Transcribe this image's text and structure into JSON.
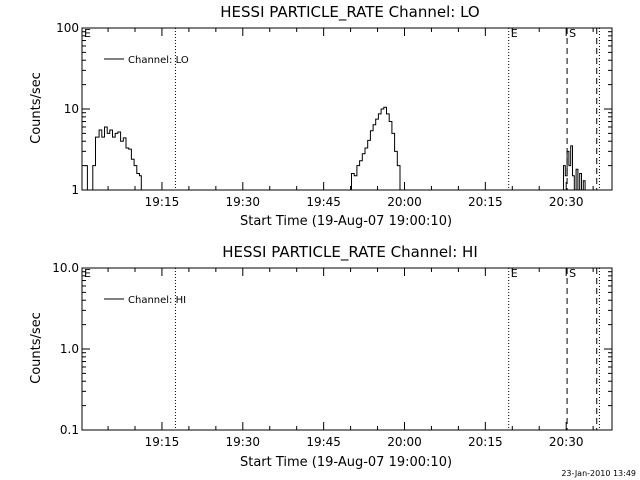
{
  "footer": {
    "timestamp": "23-Jan-2010 13:49"
  },
  "chart_data": [
    {
      "type": "line",
      "title": "HESSI PARTICLE_RATE Channel: LO",
      "xlabel": "Start Time (19-Aug-07 19:00:10)",
      "ylabel": "Counts/sec",
      "legend": {
        "entry": "Channel: LO",
        "placement": "top-left"
      },
      "yscale": "log",
      "xlim": [
        "19:00:10",
        "20:38:30"
      ],
      "ylim": [
        1,
        100
      ],
      "x_ticks": [
        "19:15",
        "19:30",
        "19:45",
        "20:00",
        "20:15",
        "20:30"
      ],
      "y_ticks": [
        "1",
        "10",
        "100"
      ],
      "markers": [
        {
          "label": "E",
          "time": "19:00:10",
          "style": "dotted"
        },
        {
          "label": "",
          "time": "19:17:30",
          "style": "dotted"
        },
        {
          "label": "E",
          "time": "20:19:20",
          "style": "dotted"
        },
        {
          "label": "S",
          "time": "20:30:10",
          "style": "dashed"
        },
        {
          "label": "",
          "time": "20:35:40",
          "style": "dashed"
        },
        {
          "label": "",
          "time": "20:36:10",
          "style": "dotted"
        }
      ],
      "series": [
        {
          "name": "Channel: LO",
          "segments": [
            {
              "x": [
                "19:00:40",
                "19:01:10",
                "19:01:40",
                "19:02:10",
                "19:02:40",
                "19:03:20",
                "19:03:50",
                "19:04:20",
                "19:04:50",
                "19:05:20",
                "19:05:50",
                "19:06:20",
                "19:06:50",
                "19:07:20",
                "19:07:50",
                "19:08:20",
                "19:08:50",
                "19:09:20",
                "19:09:50",
                "19:10:20",
                "19:10:50",
                "19:11:10"
              ],
              "y": [
                2.0,
                1.0,
                1.0,
                2.0,
                4.5,
                5.5,
                4.5,
                6.0,
                5.0,
                5.5,
                4.5,
                5.0,
                5.2,
                4.0,
                4.4,
                3.3,
                3.2,
                2.4,
                2.0,
                1.6,
                1.5,
                1.0
              ]
            },
            {
              "x": [
                "19:49:50",
                "19:50:10",
                "19:50:40",
                "19:51:10",
                "19:51:40",
                "19:52:10",
                "19:52:40",
                "19:53:10",
                "19:53:40",
                "19:54:10",
                "19:54:40",
                "19:55:10",
                "19:55:40",
                "19:56:10",
                "19:56:40",
                "19:57:10",
                "19:57:40",
                "19:58:10",
                "19:58:40",
                "19:59:10"
              ],
              "y": [
                1.0,
                1.6,
                1.5,
                2.0,
                2.3,
                2.8,
                3.3,
                4.1,
                5.4,
                6.4,
                7.5,
                8.7,
                10.0,
                10.5,
                8.7,
                7.0,
                5.0,
                3.0,
                2.0,
                1.0
              ]
            },
            {
              "x": [
                "20:29:10",
                "20:29:30",
                "20:29:50",
                "20:30:10",
                "20:30:30",
                "20:30:50",
                "20:31:10",
                "20:31:30",
                "20:31:50",
                "20:32:10",
                "20:32:30",
                "20:32:50",
                "20:33:10",
                "20:33:30"
              ],
              "y": [
                1.0,
                2.0,
                1.5,
                3.0,
                2.0,
                3.5,
                1.5,
                1.0,
                1.8,
                1.0,
                1.6,
                1.0,
                1.3,
                1.0
              ]
            }
          ]
        }
      ]
    },
    {
      "type": "line",
      "title": "HESSI PARTICLE_RATE Channel: HI",
      "xlabel": "Start Time (19-Aug-07 19:00:10)",
      "ylabel": "Counts/sec",
      "legend": {
        "entry": "Channel: HI",
        "placement": "top-left"
      },
      "yscale": "log",
      "xlim": [
        "19:00:10",
        "20:38:30"
      ],
      "ylim": [
        0.1,
        10
      ],
      "x_ticks": [
        "19:15",
        "19:30",
        "19:45",
        "20:00",
        "20:15",
        "20:30"
      ],
      "y_ticks": [
        "0.1",
        "1.0",
        "10.0"
      ],
      "markers": [
        {
          "label": "E",
          "time": "19:00:10",
          "style": "dotted"
        },
        {
          "label": "",
          "time": "19:17:30",
          "style": "dotted"
        },
        {
          "label": "E",
          "time": "20:19:20",
          "style": "dotted"
        },
        {
          "label": "S",
          "time": "20:30:10",
          "style": "dashed"
        },
        {
          "label": "",
          "time": "20:35:40",
          "style": "dashed"
        },
        {
          "label": "",
          "time": "20:36:10",
          "style": "dotted"
        }
      ],
      "series": [
        {
          "name": "Channel: HI",
          "segments": []
        }
      ]
    }
  ]
}
